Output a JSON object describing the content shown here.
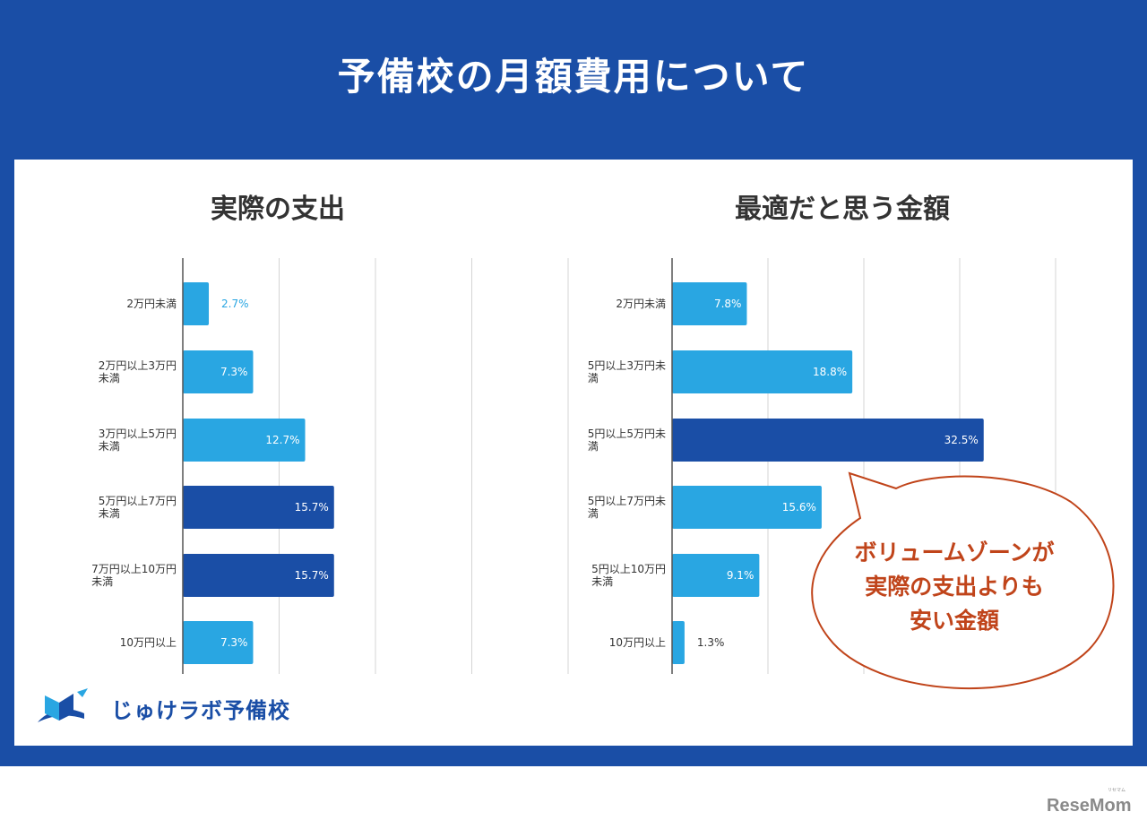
{
  "main_title": "予備校の月額費用について",
  "logo": {
    "text": "じゅけラボ予備校"
  },
  "callout": {
    "lines": [
      "ボリュームゾーンが",
      "実際の支出よりも",
      "安い金額"
    ]
  },
  "watermark": {
    "text": "ReseMom",
    "ruby": "リセマム"
  },
  "colors": {
    "light_bar": "#29a6e2",
    "dark_bar": "#1a4ea6",
    "banner": "#1a4ea6",
    "callout": "#c0441a"
  },
  "chart_data": [
    {
      "type": "bar",
      "orientation": "horizontal",
      "title": "実際の支出",
      "categories": [
        [
          "2万円未満"
        ],
        [
          "2万円以上3万円",
          "未満"
        ],
        [
          "3万円以上5万円",
          "未満"
        ],
        [
          "5万円以上7万円",
          "未満"
        ],
        [
          "7万円以上10万円",
          "未満"
        ],
        [
          "10万円以上"
        ]
      ],
      "values": [
        2.7,
        7.3,
        12.7,
        15.7,
        15.7,
        7.3
      ],
      "labels": [
        "2.7%",
        "7.3%",
        "12.7%",
        "15.7%",
        "15.7%",
        "7.3%"
      ],
      "highlight": [
        false,
        false,
        false,
        true,
        true,
        false
      ],
      "xlim": [
        0,
        40
      ],
      "grid": true,
      "xlabel": "",
      "ylabel": ""
    },
    {
      "type": "bar",
      "orientation": "horizontal",
      "title": "最適だと思う金額",
      "categories": [
        [
          "2万円未満"
        ],
        [
          "5円以上3万円未",
          "満"
        ],
        [
          "5円以上5万円未",
          "満"
        ],
        [
          "5円以上7万円未",
          "満"
        ],
        [
          "5円以上10万円",
          "未満"
        ],
        [
          "10万円以上"
        ]
      ],
      "values": [
        7.8,
        18.8,
        32.5,
        15.6,
        9.1,
        1.3
      ],
      "labels": [
        "7.8%",
        "18.8%",
        "32.5%",
        "15.6%",
        "9.1%",
        "1.3%"
      ],
      "highlight": [
        false,
        false,
        true,
        false,
        false,
        false
      ],
      "xlim": [
        0,
        40
      ],
      "grid": true,
      "xlabel": "",
      "ylabel": ""
    }
  ]
}
